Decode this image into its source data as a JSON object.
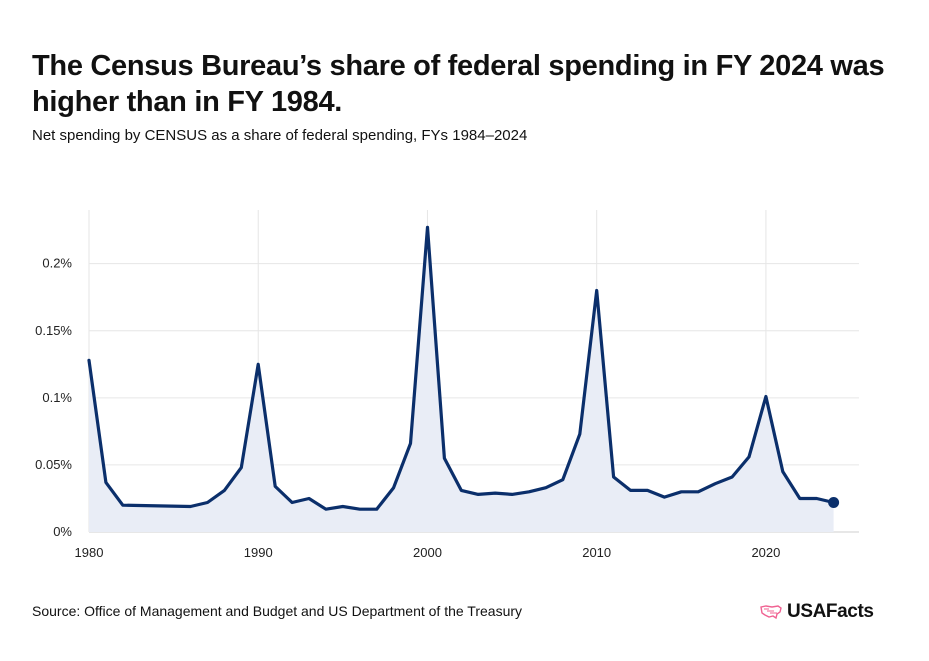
{
  "header": {
    "title": "The Census Bureau’s share of federal spending in FY 2024 was higher than in FY 1984.",
    "subtitle": "Net spending by CENSUS as a share of federal spending, FYs 1984–2024"
  },
  "footer": {
    "source": "Source: Office of Management and Budget and US Department of the Treasury",
    "brand": "USAFacts",
    "brand_icon": "us-map-icon"
  },
  "colors": {
    "line": "#0b2f6b",
    "area": "#e9edf6",
    "grid": "#e6e6e6",
    "brand_accent": "#f06292"
  },
  "chart_data": {
    "type": "area",
    "title": "The Census Bureau’s share of federal spending in FY 2024 was higher than in FY 1984.",
    "subtitle": "Net spending by CENSUS as a share of federal spending, FYs 1984–2024",
    "xlabel": "",
    "ylabel": "",
    "xlim": [
      1980,
      2025.5
    ],
    "ylim": [
      0,
      0.24
    ],
    "x_ticks": [
      1980,
      1990,
      2000,
      2010,
      2020
    ],
    "x_tick_labels": [
      "1980",
      "1990",
      "2000",
      "2010",
      "2020"
    ],
    "y_ticks": [
      0,
      0.05,
      0.1,
      0.15,
      0.2
    ],
    "y_tick_labels": [
      "0%",
      "0.05%",
      "0.1%",
      "0.15%",
      "0.2%"
    ],
    "grid": true,
    "legend": "none",
    "series": [
      {
        "x": [
          1980,
          1981,
          1982,
          1986,
          1987,
          1988,
          1989,
          1990,
          1991,
          1992,
          1993,
          1994,
          1995,
          1996,
          1997,
          1998,
          1999,
          2000,
          2001,
          2002,
          2003,
          2004,
          2005,
          2006,
          2007,
          2008,
          2009,
          2010,
          2011,
          2012,
          2013,
          2014,
          2015,
          2016,
          2017,
          2018,
          2019,
          2020,
          2021,
          2022,
          2023,
          2024
        ],
        "values": [
          0.128,
          0.037,
          0.02,
          0.019,
          0.022,
          0.031,
          0.048,
          0.125,
          0.034,
          0.022,
          0.025,
          0.017,
          0.019,
          0.017,
          0.017,
          0.033,
          0.066,
          0.227,
          0.055,
          0.031,
          0.028,
          0.029,
          0.028,
          0.03,
          0.033,
          0.039,
          0.073,
          0.18,
          0.041,
          0.031,
          0.031,
          0.026,
          0.03,
          0.03,
          0.036,
          0.041,
          0.056,
          0.101,
          0.045,
          0.025,
          0.025,
          0.022
        ]
      }
    ],
    "end_marker": true
  }
}
